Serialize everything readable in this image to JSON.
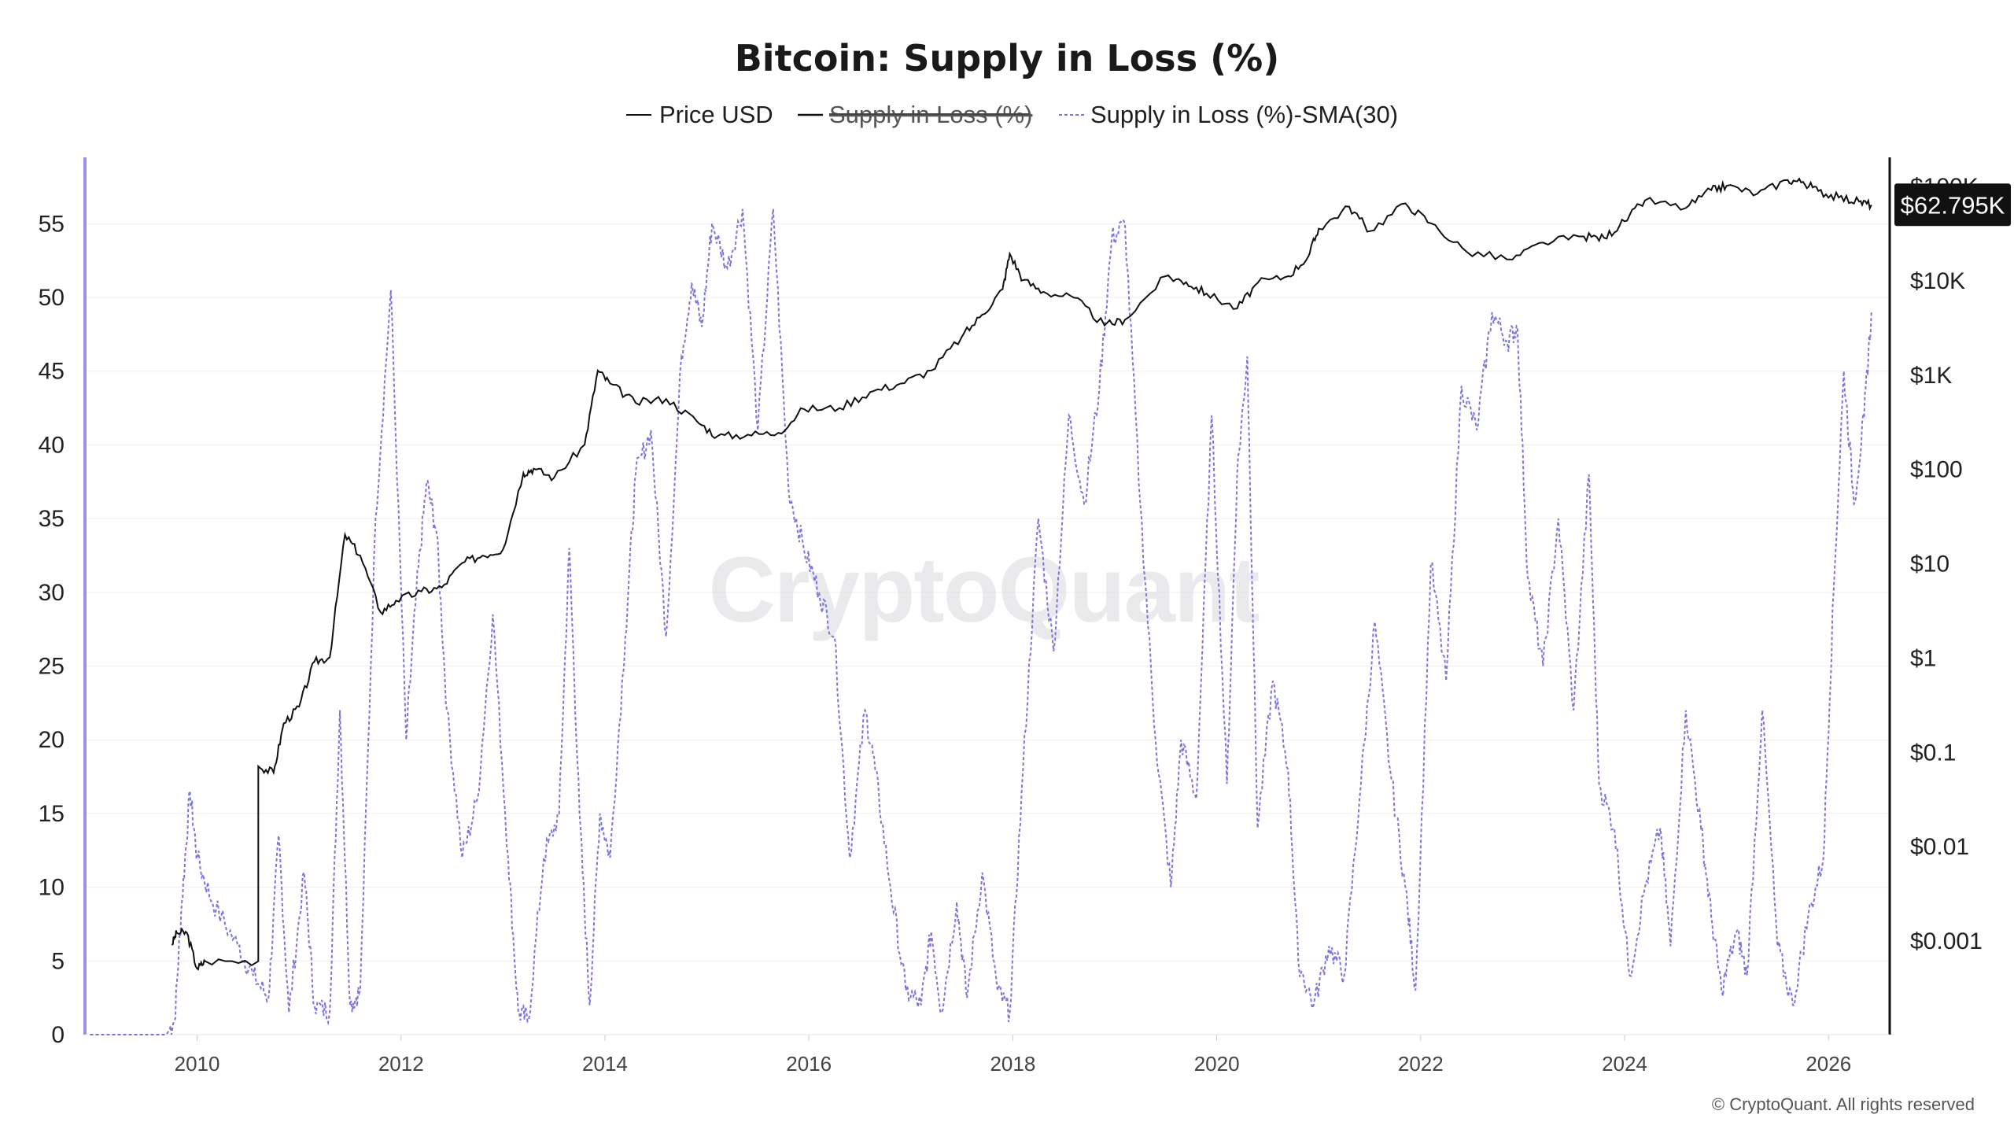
{
  "chart_data": {
    "type": "line",
    "title": "Bitcoin: Supply in Loss (%)",
    "legend": [
      {
        "name": "Price USD",
        "style": "solid",
        "color": "#111111",
        "hidden": false
      },
      {
        "name": "Supply in Loss (%)",
        "style": "solid",
        "color": "#111111",
        "hidden": true
      },
      {
        "name": "Supply in Loss (%)-SMA(30)",
        "style": "dashed",
        "color": "#7b74e0",
        "hidden": false
      }
    ],
    "legend_position": "top-center",
    "x_ticks": [
      "2010",
      "2012",
      "2014",
      "2016",
      "2018",
      "2020",
      "2022",
      "2024",
      "2026"
    ],
    "x_range": [
      2008.9,
      2026.6
    ],
    "y_left": {
      "ticks": [
        0,
        5,
        10,
        15,
        20,
        25,
        30,
        35,
        40,
        45,
        50,
        55
      ],
      "range": [
        0,
        59.5
      ],
      "axis_color": "#9b8fe6"
    },
    "y_right": {
      "scale": "log",
      "ticks": [
        "$0.001",
        "$0.01",
        "$0.1",
        "$1",
        "$10",
        "$100",
        "$1K",
        "$10K",
        "$100K"
      ],
      "tick_values": [
        0.001,
        0.01,
        0.1,
        1,
        10,
        100,
        1000,
        10000,
        100000
      ],
      "range": [
        0.0001,
        200000
      ]
    },
    "current_value_label": "$62.795K",
    "grid": "horizontal",
    "watermark": "CryptoQuant",
    "copyright": "© CryptoQuant. All rights reserved",
    "series": [
      {
        "name": "Price USD",
        "axis": "right",
        "color": "#111111",
        "points": [
          [
            2009.75,
            0.0009
          ],
          [
            2009.8,
            0.0012
          ],
          [
            2009.9,
            0.0012
          ],
          [
            2010.0,
            0.0005
          ],
          [
            2010.08,
            0.0006
          ],
          [
            2010.6,
            0.0006
          ],
          [
            2010.6,
            0.07
          ],
          [
            2010.75,
            0.06
          ],
          [
            2010.85,
            0.2
          ],
          [
            2011.0,
            0.3
          ],
          [
            2011.15,
            0.9
          ],
          [
            2011.3,
            1.0
          ],
          [
            2011.45,
            20
          ],
          [
            2011.6,
            12
          ],
          [
            2011.8,
            3
          ],
          [
            2011.95,
            4
          ],
          [
            2012.2,
            5
          ],
          [
            2012.4,
            5.5
          ],
          [
            2012.6,
            10
          ],
          [
            2012.8,
            12
          ],
          [
            2013.0,
            14
          ],
          [
            2013.2,
            90
          ],
          [
            2013.3,
            100
          ],
          [
            2013.5,
            80
          ],
          [
            2013.8,
            180
          ],
          [
            2013.93,
            1100
          ],
          [
            2014.05,
            800
          ],
          [
            2014.3,
            500
          ],
          [
            2014.6,
            550
          ],
          [
            2014.9,
            320
          ],
          [
            2015.1,
            220
          ],
          [
            2015.4,
            230
          ],
          [
            2015.7,
            240
          ],
          [
            2015.95,
            430
          ],
          [
            2016.3,
            440
          ],
          [
            2016.6,
            650
          ],
          [
            2016.9,
            800
          ],
          [
            2017.2,
            1100
          ],
          [
            2017.5,
            2500
          ],
          [
            2017.7,
            4300
          ],
          [
            2017.9,
            8000
          ],
          [
            2017.97,
            19000
          ],
          [
            2018.1,
            10000
          ],
          [
            2018.3,
            7500
          ],
          [
            2018.6,
            6500
          ],
          [
            2018.9,
            3300
          ],
          [
            2019.1,
            3800
          ],
          [
            2019.5,
            11000
          ],
          [
            2019.7,
            9500
          ],
          [
            2019.9,
            7200
          ],
          [
            2020.2,
            5000
          ],
          [
            2020.4,
            9300
          ],
          [
            2020.7,
            11000
          ],
          [
            2020.9,
            18000
          ],
          [
            2021.0,
            35000
          ],
          [
            2021.3,
            60000
          ],
          [
            2021.5,
            33000
          ],
          [
            2021.85,
            65000
          ],
          [
            2022.1,
            40000
          ],
          [
            2022.45,
            20000
          ],
          [
            2022.9,
            16500
          ],
          [
            2023.2,
            25000
          ],
          [
            2023.6,
            29000
          ],
          [
            2023.8,
            28000
          ],
          [
            2024.0,
            42000
          ],
          [
            2024.2,
            70000
          ],
          [
            2024.6,
            58000
          ],
          [
            2024.85,
            90000
          ],
          [
            2025.0,
            100000
          ],
          [
            2025.3,
            82000
          ],
          [
            2025.6,
            115000
          ],
          [
            2025.75,
            110000
          ],
          [
            2025.9,
            88000
          ],
          [
            2026.1,
            75000
          ],
          [
            2026.3,
            68000
          ],
          [
            2026.42,
            62795
          ]
        ]
      },
      {
        "name": "Supply in Loss (%)-SMA(30)",
        "axis": "left",
        "color": "#7b74e0",
        "points": [
          [
            2008.95,
            0
          ],
          [
            2009.7,
            0
          ],
          [
            2009.78,
            1
          ],
          [
            2009.85,
            9
          ],
          [
            2009.93,
            16.5
          ],
          [
            2010.0,
            12
          ],
          [
            2010.15,
            9
          ],
          [
            2010.4,
            6
          ],
          [
            2010.55,
            4
          ],
          [
            2010.7,
            2.5
          ],
          [
            2010.8,
            13.5
          ],
          [
            2010.9,
            1.5
          ],
          [
            2011.05,
            11
          ],
          [
            2011.15,
            2
          ],
          [
            2011.3,
            1.5
          ],
          [
            2011.4,
            22
          ],
          [
            2011.5,
            2
          ],
          [
            2011.6,
            3
          ],
          [
            2011.75,
            35
          ],
          [
            2011.9,
            50.5
          ],
          [
            2012.05,
            20
          ],
          [
            2012.15,
            30
          ],
          [
            2012.25,
            37.5
          ],
          [
            2012.35,
            34
          ],
          [
            2012.45,
            22
          ],
          [
            2012.6,
            12
          ],
          [
            2012.75,
            16
          ],
          [
            2012.9,
            28.5
          ],
          [
            2013.05,
            12
          ],
          [
            2013.15,
            1.5
          ],
          [
            2013.25,
            1
          ],
          [
            2013.4,
            12
          ],
          [
            2013.55,
            15
          ],
          [
            2013.65,
            33
          ],
          [
            2013.75,
            15
          ],
          [
            2013.85,
            2
          ],
          [
            2013.95,
            15
          ],
          [
            2014.05,
            12
          ],
          [
            2014.2,
            27
          ],
          [
            2014.3,
            38
          ],
          [
            2014.45,
            41
          ],
          [
            2014.6,
            27
          ],
          [
            2014.75,
            46
          ],
          [
            2014.85,
            51
          ],
          [
            2014.95,
            48
          ],
          [
            2015.05,
            55
          ],
          [
            2015.2,
            52
          ],
          [
            2015.35,
            56
          ],
          [
            2015.5,
            41
          ],
          [
            2015.65,
            56
          ],
          [
            2015.8,
            37
          ],
          [
            2015.95,
            33
          ],
          [
            2016.1,
            30
          ],
          [
            2016.25,
            27
          ],
          [
            2016.4,
            12
          ],
          [
            2016.55,
            22
          ],
          [
            2016.65,
            18
          ],
          [
            2016.8,
            10
          ],
          [
            2016.95,
            3
          ],
          [
            2017.1,
            2
          ],
          [
            2017.2,
            7
          ],
          [
            2017.3,
            1.5
          ],
          [
            2017.45,
            9
          ],
          [
            2017.55,
            2.5
          ],
          [
            2017.7,
            11
          ],
          [
            2017.85,
            3
          ],
          [
            2017.97,
            1.5
          ],
          [
            2018.1,
            18
          ],
          [
            2018.25,
            35
          ],
          [
            2018.4,
            26
          ],
          [
            2018.55,
            42
          ],
          [
            2018.7,
            36
          ],
          [
            2018.85,
            44
          ],
          [
            2018.97,
            54
          ],
          [
            2019.1,
            55
          ],
          [
            2019.25,
            36
          ],
          [
            2019.4,
            20
          ],
          [
            2019.55,
            10
          ],
          [
            2019.65,
            20
          ],
          [
            2019.8,
            16
          ],
          [
            2019.95,
            42
          ],
          [
            2020.1,
            17
          ],
          [
            2020.2,
            38
          ],
          [
            2020.3,
            46
          ],
          [
            2020.4,
            14
          ],
          [
            2020.55,
            24
          ],
          [
            2020.7,
            18
          ],
          [
            2020.8,
            5
          ],
          [
            2020.95,
            2
          ],
          [
            2021.1,
            6
          ],
          [
            2021.25,
            4
          ],
          [
            2021.4,
            16
          ],
          [
            2021.55,
            28
          ],
          [
            2021.7,
            18
          ],
          [
            2021.85,
            10
          ],
          [
            2021.95,
            3
          ],
          [
            2022.1,
            32
          ],
          [
            2022.25,
            24
          ],
          [
            2022.4,
            44
          ],
          [
            2022.55,
            41
          ],
          [
            2022.7,
            49
          ],
          [
            2022.85,
            47
          ],
          [
            2022.95,
            48
          ],
          [
            2023.05,
            31
          ],
          [
            2023.2,
            25
          ],
          [
            2023.35,
            35
          ],
          [
            2023.5,
            22
          ],
          [
            2023.65,
            38
          ],
          [
            2023.75,
            17
          ],
          [
            2023.9,
            14
          ],
          [
            2024.05,
            4
          ],
          [
            2024.2,
            10
          ],
          [
            2024.35,
            14
          ],
          [
            2024.45,
            6
          ],
          [
            2024.6,
            22
          ],
          [
            2024.75,
            14
          ],
          [
            2024.85,
            8
          ],
          [
            2024.95,
            3
          ],
          [
            2025.1,
            7
          ],
          [
            2025.2,
            4
          ],
          [
            2025.35,
            22
          ],
          [
            2025.5,
            6
          ],
          [
            2025.65,
            2
          ],
          [
            2025.8,
            8
          ],
          [
            2025.95,
            12
          ],
          [
            2026.05,
            30
          ],
          [
            2026.15,
            45
          ],
          [
            2026.25,
            36
          ],
          [
            2026.35,
            42
          ],
          [
            2026.42,
            49
          ]
        ]
      }
    ]
  }
}
